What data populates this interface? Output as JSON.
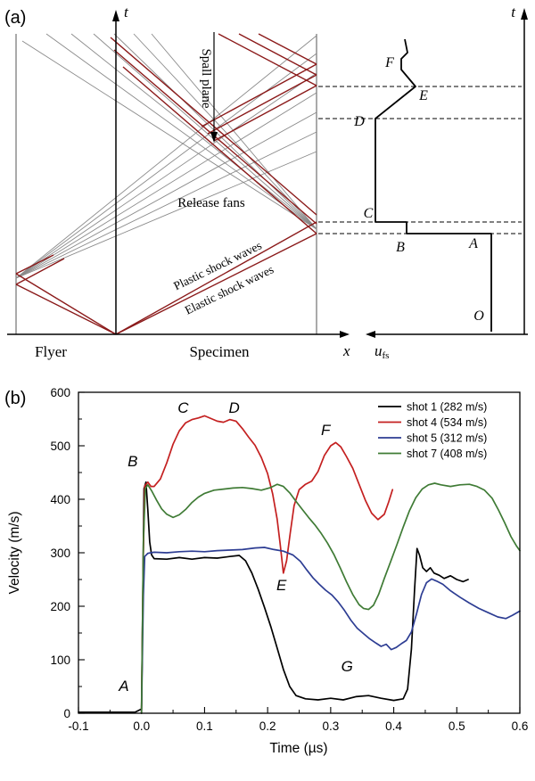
{
  "panel_a": {
    "label": "(a)",
    "t_axis_left": "t",
    "t_axis_right": "t",
    "x_axis": "x",
    "u_symbol": "u",
    "u_subscript": "fs",
    "flyer": "Flyer",
    "specimen": "Specimen",
    "spall_plane": "Spall plane",
    "release_fans": "Release fans",
    "plastic_waves": "Plastic shock waves",
    "elastic_waves": "Elastic shock waves",
    "profile_labels": [
      "O",
      "A",
      "B",
      "C",
      "D",
      "E",
      "F"
    ],
    "colors": {
      "shock": "#8b1a1a",
      "fan": "#8a8a8a",
      "profile": "#000000"
    }
  },
  "chart_data": {
    "type": "line",
    "panel_label": "(b)",
    "title": "",
    "xlabel": "Time (µs)",
    "ylabel": "Velocity (m/s)",
    "xlim": [
      -0.1,
      0.6
    ],
    "ylim": [
      0,
      600
    ],
    "grid": false,
    "legend_position": "top-right",
    "xtick_values": [
      -0.1,
      0.0,
      0.1,
      0.2,
      0.3,
      0.4,
      0.5,
      0.6
    ],
    "xtick_labels": [
      "-0.1",
      "0.0",
      "0.1",
      "0.2",
      "0.3",
      "0.4",
      "0.5",
      "0.6"
    ],
    "ytick_values": [
      0,
      100,
      200,
      300,
      400,
      500,
      600
    ],
    "ytick_labels": [
      "0",
      "100",
      "200",
      "300",
      "400",
      "500",
      "600"
    ],
    "annotations": [
      {
        "label": "A",
        "t": -0.028,
        "v": 42
      },
      {
        "label": "B",
        "t": -0.014,
        "v": 462
      },
      {
        "label": "C",
        "t": 0.066,
        "v": 562
      },
      {
        "label": "D",
        "t": 0.147,
        "v": 562
      },
      {
        "label": "E",
        "t": 0.222,
        "v": 230
      },
      {
        "label": "F",
        "t": 0.292,
        "v": 520
      },
      {
        "label": "G",
        "t": 0.326,
        "v": 78
      }
    ],
    "series": [
      {
        "name": "shot 1 (282 m/s)",
        "color": "#000000",
        "points": [
          [
            -0.1,
            2
          ],
          [
            -0.05,
            2
          ],
          [
            -0.01,
            2
          ],
          [
            0.0,
            8
          ],
          [
            0.004,
            420
          ],
          [
            0.007,
            432
          ],
          [
            0.01,
            380
          ],
          [
            0.013,
            320
          ],
          [
            0.016,
            296
          ],
          [
            0.02,
            289
          ],
          [
            0.04,
            288
          ],
          [
            0.06,
            291
          ],
          [
            0.08,
            288
          ],
          [
            0.1,
            291
          ],
          [
            0.12,
            290
          ],
          [
            0.14,
            293
          ],
          [
            0.155,
            295
          ],
          [
            0.165,
            285
          ],
          [
            0.175,
            262
          ],
          [
            0.185,
            232
          ],
          [
            0.195,
            198
          ],
          [
            0.205,
            162
          ],
          [
            0.215,
            122
          ],
          [
            0.225,
            82
          ],
          [
            0.235,
            50
          ],
          [
            0.245,
            33
          ],
          [
            0.26,
            27
          ],
          [
            0.28,
            25
          ],
          [
            0.3,
            28
          ],
          [
            0.32,
            25
          ],
          [
            0.34,
            31
          ],
          [
            0.36,
            33
          ],
          [
            0.38,
            28
          ],
          [
            0.4,
            24
          ],
          [
            0.415,
            27
          ],
          [
            0.422,
            45
          ],
          [
            0.428,
            120
          ],
          [
            0.433,
            230
          ],
          [
            0.437,
            308
          ],
          [
            0.441,
            295
          ],
          [
            0.446,
            272
          ],
          [
            0.452,
            265
          ],
          [
            0.458,
            272
          ],
          [
            0.464,
            262
          ],
          [
            0.472,
            258
          ],
          [
            0.48,
            252
          ],
          [
            0.49,
            257
          ],
          [
            0.5,
            250
          ],
          [
            0.51,
            246
          ],
          [
            0.518,
            250
          ]
        ]
      },
      {
        "name": "shot 4 (534 m/s)",
        "color": "#c42020",
        "points": [
          [
            0.0,
            0
          ],
          [
            0.003,
            300
          ],
          [
            0.005,
            425
          ],
          [
            0.01,
            432
          ],
          [
            0.015,
            424
          ],
          [
            0.02,
            424
          ],
          [
            0.03,
            438
          ],
          [
            0.04,
            468
          ],
          [
            0.05,
            503
          ],
          [
            0.06,
            528
          ],
          [
            0.07,
            543
          ],
          [
            0.08,
            549
          ],
          [
            0.09,
            552
          ],
          [
            0.1,
            556
          ],
          [
            0.11,
            551
          ],
          [
            0.12,
            546
          ],
          [
            0.13,
            544
          ],
          [
            0.14,
            549
          ],
          [
            0.15,
            546
          ],
          [
            0.16,
            532
          ],
          [
            0.17,
            516
          ],
          [
            0.18,
            501
          ],
          [
            0.19,
            478
          ],
          [
            0.2,
            448
          ],
          [
            0.208,
            410
          ],
          [
            0.215,
            363
          ],
          [
            0.22,
            315
          ],
          [
            0.225,
            262
          ],
          [
            0.23,
            285
          ],
          [
            0.236,
            338
          ],
          [
            0.242,
            388
          ],
          [
            0.25,
            418
          ],
          [
            0.26,
            428
          ],
          [
            0.27,
            434
          ],
          [
            0.28,
            452
          ],
          [
            0.29,
            482
          ],
          [
            0.3,
            500
          ],
          [
            0.308,
            506
          ],
          [
            0.316,
            498
          ],
          [
            0.325,
            480
          ],
          [
            0.335,
            458
          ],
          [
            0.345,
            428
          ],
          [
            0.355,
            398
          ],
          [
            0.365,
            374
          ],
          [
            0.375,
            362
          ],
          [
            0.385,
            372
          ],
          [
            0.392,
            395
          ],
          [
            0.398,
            418
          ]
        ]
      },
      {
        "name": "shot 5 (312 m/s)",
        "color": "#2d3d93",
        "points": [
          [
            0.0,
            0
          ],
          [
            0.003,
            220
          ],
          [
            0.005,
            293
          ],
          [
            0.01,
            299
          ],
          [
            0.02,
            301
          ],
          [
            0.04,
            300
          ],
          [
            0.06,
            302
          ],
          [
            0.08,
            303
          ],
          [
            0.1,
            302
          ],
          [
            0.12,
            304
          ],
          [
            0.14,
            305
          ],
          [
            0.16,
            306
          ],
          [
            0.18,
            309
          ],
          [
            0.195,
            310
          ],
          [
            0.21,
            306
          ],
          [
            0.225,
            303
          ],
          [
            0.24,
            296
          ],
          [
            0.252,
            284
          ],
          [
            0.262,
            268
          ],
          [
            0.272,
            253
          ],
          [
            0.282,
            241
          ],
          [
            0.292,
            230
          ],
          [
            0.302,
            221
          ],
          [
            0.312,
            208
          ],
          [
            0.322,
            192
          ],
          [
            0.332,
            174
          ],
          [
            0.342,
            159
          ],
          [
            0.352,
            149
          ],
          [
            0.362,
            139
          ],
          [
            0.372,
            131
          ],
          [
            0.38,
            125
          ],
          [
            0.388,
            129
          ],
          [
            0.396,
            119
          ],
          [
            0.404,
            123
          ],
          [
            0.412,
            130
          ],
          [
            0.42,
            136
          ],
          [
            0.428,
            152
          ],
          [
            0.436,
            185
          ],
          [
            0.444,
            222
          ],
          [
            0.452,
            244
          ],
          [
            0.46,
            251
          ],
          [
            0.468,
            247
          ],
          [
            0.478,
            241
          ],
          [
            0.49,
            229
          ],
          [
            0.505,
            217
          ],
          [
            0.52,
            206
          ],
          [
            0.535,
            196
          ],
          [
            0.55,
            188
          ],
          [
            0.565,
            180
          ],
          [
            0.578,
            177
          ],
          [
            0.588,
            183
          ],
          [
            0.6,
            191
          ]
        ]
      },
      {
        "name": "shot 7 (408 m/s)",
        "color": "#3f7b35",
        "points": [
          [
            0.0,
            0
          ],
          [
            0.003,
            320
          ],
          [
            0.006,
            420
          ],
          [
            0.01,
            427
          ],
          [
            0.016,
            416
          ],
          [
            0.024,
            398
          ],
          [
            0.032,
            382
          ],
          [
            0.04,
            372
          ],
          [
            0.05,
            366
          ],
          [
            0.06,
            371
          ],
          [
            0.07,
            381
          ],
          [
            0.08,
            394
          ],
          [
            0.09,
            404
          ],
          [
            0.1,
            411
          ],
          [
            0.115,
            417
          ],
          [
            0.13,
            419
          ],
          [
            0.145,
            421
          ],
          [
            0.16,
            422
          ],
          [
            0.175,
            420
          ],
          [
            0.19,
            417
          ],
          [
            0.205,
            422
          ],
          [
            0.215,
            428
          ],
          [
            0.225,
            424
          ],
          [
            0.235,
            412
          ],
          [
            0.245,
            396
          ],
          [
            0.255,
            381
          ],
          [
            0.265,
            366
          ],
          [
            0.275,
            352
          ],
          [
            0.285,
            336
          ],
          [
            0.295,
            318
          ],
          [
            0.305,
            297
          ],
          [
            0.315,
            272
          ],
          [
            0.325,
            246
          ],
          [
            0.335,
            222
          ],
          [
            0.345,
            203
          ],
          [
            0.352,
            196
          ],
          [
            0.36,
            194
          ],
          [
            0.368,
            202
          ],
          [
            0.376,
            222
          ],
          [
            0.385,
            252
          ],
          [
            0.395,
            283
          ],
          [
            0.405,
            315
          ],
          [
            0.415,
            348
          ],
          [
            0.425,
            379
          ],
          [
            0.435,
            403
          ],
          [
            0.445,
            419
          ],
          [
            0.455,
            427
          ],
          [
            0.465,
            430
          ],
          [
            0.475,
            427
          ],
          [
            0.49,
            424
          ],
          [
            0.505,
            427
          ],
          [
            0.52,
            428
          ],
          [
            0.532,
            424
          ],
          [
            0.544,
            417
          ],
          [
            0.556,
            402
          ],
          [
            0.566,
            380
          ],
          [
            0.576,
            356
          ],
          [
            0.586,
            330
          ],
          [
            0.595,
            312
          ],
          [
            0.6,
            304
          ]
        ]
      }
    ]
  }
}
